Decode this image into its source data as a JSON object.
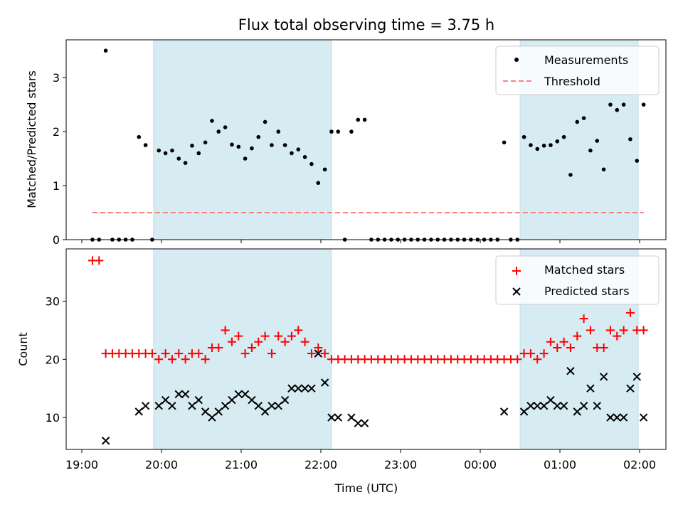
{
  "figure": {
    "title": "Flux total observing time = 3.75 h",
    "xlabel": "Time (UTC)",
    "x_tick_labels": [
      "19:00",
      "20:00",
      "21:00",
      "22:00",
      "23:00",
      "00:00",
      "01:00",
      "02:00"
    ],
    "shade_color": "#add8e6",
    "shaded_intervals": [
      [
        "19:54",
        "22:08"
      ],
      [
        "00:30",
        "01:59"
      ]
    ]
  },
  "chart_data": [
    {
      "type": "scatter",
      "ylabel": "Matched/Predicted stars",
      "ylim": [
        0,
        3.7
      ],
      "y_ticks": [
        0,
        1,
        2,
        3
      ],
      "legend_position": "upper right",
      "series": [
        {
          "name": "Measurements",
          "marker": "dot",
          "color": "#000000",
          "points": [
            [
              "19:08",
              0
            ],
            [
              "19:13",
              0
            ],
            [
              "19:18",
              3.5
            ],
            [
              "19:23",
              0
            ],
            [
              "19:28",
              0
            ],
            [
              "19:33",
              0
            ],
            [
              "19:38",
              0
            ],
            [
              "19:43",
              1.9
            ],
            [
              "19:48",
              1.75
            ],
            [
              "19:53",
              0
            ],
            [
              "19:58",
              1.65
            ],
            [
              "20:03",
              1.6
            ],
            [
              "20:08",
              1.65
            ],
            [
              "20:13",
              1.5
            ],
            [
              "20:18",
              1.42
            ],
            [
              "20:23",
              1.74
            ],
            [
              "20:28",
              1.6
            ],
            [
              "20:33",
              1.8
            ],
            [
              "20:38",
              2.2
            ],
            [
              "20:43",
              2.0
            ],
            [
              "20:48",
              2.08
            ],
            [
              "20:53",
              1.76
            ],
            [
              "20:58",
              1.72
            ],
            [
              "21:03",
              1.5
            ],
            [
              "21:08",
              1.69
            ],
            [
              "21:13",
              1.9
            ],
            [
              "21:18",
              2.18
            ],
            [
              "21:23",
              1.75
            ],
            [
              "21:28",
              2.0
            ],
            [
              "21:33",
              1.75
            ],
            [
              "21:38",
              1.6
            ],
            [
              "21:43",
              1.67
            ],
            [
              "21:48",
              1.53
            ],
            [
              "21:53",
              1.4
            ],
            [
              "21:58",
              1.05
            ],
            [
              "22:03",
              1.3
            ],
            [
              "22:08",
              2.0
            ],
            [
              "22:13",
              2.0
            ],
            [
              "22:18",
              0
            ],
            [
              "22:23",
              2.0
            ],
            [
              "22:28",
              2.22
            ],
            [
              "22:33",
              2.22
            ],
            [
              "22:38",
              0
            ],
            [
              "22:43",
              0
            ],
            [
              "22:48",
              0
            ],
            [
              "22:53",
              0
            ],
            [
              "22:58",
              0
            ],
            [
              "23:03",
              0
            ],
            [
              "23:08",
              0
            ],
            [
              "23:13",
              0
            ],
            [
              "23:18",
              0
            ],
            [
              "23:23",
              0
            ],
            [
              "23:28",
              0
            ],
            [
              "23:33",
              0
            ],
            [
              "23:38",
              0
            ],
            [
              "23:43",
              0
            ],
            [
              "23:48",
              0
            ],
            [
              "23:53",
              0
            ],
            [
              "23:58",
              0
            ],
            [
              "00:03",
              0
            ],
            [
              "00:08",
              0
            ],
            [
              "00:13",
              0
            ],
            [
              "00:18",
              1.8
            ],
            [
              "00:23",
              0
            ],
            [
              "00:28",
              0
            ],
            [
              "00:33",
              1.9
            ],
            [
              "00:38",
              1.75
            ],
            [
              "00:43",
              1.68
            ],
            [
              "00:48",
              1.74
            ],
            [
              "00:53",
              1.75
            ],
            [
              "00:58",
              1.82
            ],
            [
              "01:03",
              1.9
            ],
            [
              "01:08",
              1.2
            ],
            [
              "01:13",
              2.18
            ],
            [
              "01:18",
              2.25
            ],
            [
              "01:23",
              1.65
            ],
            [
              "01:28",
              1.83
            ],
            [
              "01:33",
              1.3
            ],
            [
              "01:38",
              2.5
            ],
            [
              "01:43",
              2.4
            ],
            [
              "01:48",
              2.5
            ],
            [
              "01:53",
              1.86
            ],
            [
              "01:58",
              1.46
            ],
            [
              "02:03",
              2.5
            ]
          ]
        },
        {
          "name": "Threshold",
          "marker": "dashed-line",
          "color": "#ff7f7f",
          "y": 0.5,
          "x_range": [
            "19:08",
            "02:03"
          ]
        }
      ]
    },
    {
      "type": "scatter",
      "ylabel": "Count",
      "ylim": [
        4.5,
        39
      ],
      "y_ticks": [
        10,
        20,
        30
      ],
      "legend_position": "upper right",
      "series": [
        {
          "name": "Matched stars",
          "marker": "plus",
          "color": "#ff0000",
          "points": [
            [
              "19:08",
              37
            ],
            [
              "19:13",
              37
            ],
            [
              "19:18",
              21
            ],
            [
              "19:23",
              21
            ],
            [
              "19:28",
              21
            ],
            [
              "19:33",
              21
            ],
            [
              "19:38",
              21
            ],
            [
              "19:43",
              21
            ],
            [
              "19:48",
              21
            ],
            [
              "19:53",
              21
            ],
            [
              "19:58",
              20
            ],
            [
              "20:03",
              21
            ],
            [
              "20:08",
              20
            ],
            [
              "20:13",
              21
            ],
            [
              "20:18",
              20
            ],
            [
              "20:23",
              21
            ],
            [
              "20:28",
              21
            ],
            [
              "20:33",
              20
            ],
            [
              "20:38",
              22
            ],
            [
              "20:43",
              22
            ],
            [
              "20:48",
              25
            ],
            [
              "20:53",
              23
            ],
            [
              "20:58",
              24
            ],
            [
              "21:03",
              21
            ],
            [
              "21:08",
              22
            ],
            [
              "21:13",
              23
            ],
            [
              "21:18",
              24
            ],
            [
              "21:23",
              21
            ],
            [
              "21:28",
              24
            ],
            [
              "21:33",
              23
            ],
            [
              "21:38",
              24
            ],
            [
              "21:43",
              25
            ],
            [
              "21:48",
              23
            ],
            [
              "21:53",
              21
            ],
            [
              "21:58",
              22
            ],
            [
              "22:03",
              21
            ],
            [
              "22:08",
              20
            ],
            [
              "22:13",
              20
            ],
            [
              "22:18",
              20
            ],
            [
              "22:23",
              20
            ],
            [
              "22:28",
              20
            ],
            [
              "22:33",
              20
            ],
            [
              "22:38",
              20
            ],
            [
              "22:43",
              20
            ],
            [
              "22:48",
              20
            ],
            [
              "22:53",
              20
            ],
            [
              "22:58",
              20
            ],
            [
              "23:03",
              20
            ],
            [
              "23:08",
              20
            ],
            [
              "23:13",
              20
            ],
            [
              "23:18",
              20
            ],
            [
              "23:23",
              20
            ],
            [
              "23:28",
              20
            ],
            [
              "23:33",
              20
            ],
            [
              "23:38",
              20
            ],
            [
              "23:43",
              20
            ],
            [
              "23:48",
              20
            ],
            [
              "23:53",
              20
            ],
            [
              "23:58",
              20
            ],
            [
              "00:03",
              20
            ],
            [
              "00:08",
              20
            ],
            [
              "00:13",
              20
            ],
            [
              "00:18",
              20
            ],
            [
              "00:23",
              20
            ],
            [
              "00:28",
              20
            ],
            [
              "00:33",
              21
            ],
            [
              "00:38",
              21
            ],
            [
              "00:43",
              20
            ],
            [
              "00:48",
              21
            ],
            [
              "00:53",
              23
            ],
            [
              "00:58",
              22
            ],
            [
              "01:03",
              23
            ],
            [
              "01:08",
              22
            ],
            [
              "01:13",
              24
            ],
            [
              "01:18",
              27
            ],
            [
              "01:23",
              25
            ],
            [
              "01:28",
              22
            ],
            [
              "01:33",
              22
            ],
            [
              "01:38",
              25
            ],
            [
              "01:43",
              24
            ],
            [
              "01:48",
              25
            ],
            [
              "01:53",
              28
            ],
            [
              "01:58",
              25
            ],
            [
              "02:03",
              25
            ]
          ]
        },
        {
          "name": "Predicted stars",
          "marker": "x",
          "color": "#000000",
          "points": [
            [
              "19:18",
              6
            ],
            [
              "19:43",
              11
            ],
            [
              "19:48",
              12
            ],
            [
              "19:58",
              12
            ],
            [
              "20:03",
              13
            ],
            [
              "20:08",
              12
            ],
            [
              "20:13",
              14
            ],
            [
              "20:18",
              14
            ],
            [
              "20:23",
              12
            ],
            [
              "20:28",
              13
            ],
            [
              "20:33",
              11
            ],
            [
              "20:38",
              10
            ],
            [
              "20:43",
              11
            ],
            [
              "20:48",
              12
            ],
            [
              "20:53",
              13
            ],
            [
              "20:58",
              14
            ],
            [
              "21:03",
              14
            ],
            [
              "21:08",
              13
            ],
            [
              "21:13",
              12
            ],
            [
              "21:18",
              11
            ],
            [
              "21:23",
              12
            ],
            [
              "21:28",
              12
            ],
            [
              "21:33",
              13
            ],
            [
              "21:38",
              15
            ],
            [
              "21:43",
              15
            ],
            [
              "21:48",
              15
            ],
            [
              "21:53",
              15
            ],
            [
              "21:58",
              21
            ],
            [
              "22:03",
              16
            ],
            [
              "22:08",
              10
            ],
            [
              "22:13",
              10
            ],
            [
              "22:23",
              10
            ],
            [
              "22:28",
              9
            ],
            [
              "22:33",
              9
            ],
            [
              "00:18",
              11
            ],
            [
              "00:33",
              11
            ],
            [
              "00:38",
              12
            ],
            [
              "00:43",
              12
            ],
            [
              "00:48",
              12
            ],
            [
              "00:53",
              13
            ],
            [
              "00:58",
              12
            ],
            [
              "01:03",
              12
            ],
            [
              "01:08",
              18
            ],
            [
              "01:13",
              11
            ],
            [
              "01:18",
              12
            ],
            [
              "01:23",
              15
            ],
            [
              "01:28",
              12
            ],
            [
              "01:33",
              17
            ],
            [
              "01:38",
              10
            ],
            [
              "01:43",
              10
            ],
            [
              "01:48",
              10
            ],
            [
              "01:53",
              15
            ],
            [
              "01:58",
              17
            ],
            [
              "02:03",
              10
            ]
          ]
        }
      ]
    }
  ]
}
